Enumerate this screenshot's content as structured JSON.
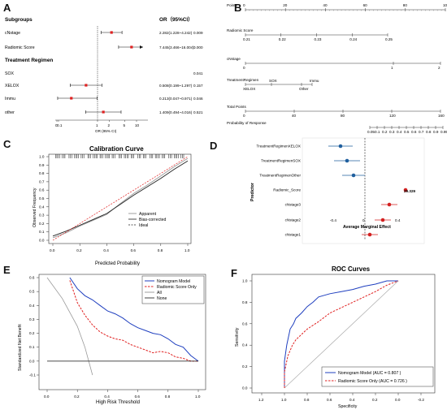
{
  "panels": {
    "A": {
      "label": "A",
      "header_subgroups": "Subgroups",
      "header_or": "OR（95%CI）",
      "rows": [
        {
          "label": "cNstage",
          "or": 2.282,
          "lo": 1.228,
          "hi": 4.242,
          "or_text": "2.282(1.228~4.242)",
          "p": "0.009",
          "heading": false
        },
        {
          "label": "Radiomic Score",
          "or": 7.445,
          "lo": 3.466,
          "hi": 16.004,
          "or_text": "7.445(3.466~16.004)",
          "p": "0.000",
          "heading": false,
          "arrow": true
        },
        {
          "label": "Treatment Regimen",
          "heading": true
        },
        {
          "label": "SOX",
          "or_text": "",
          "p": "0.041",
          "heading": false
        },
        {
          "label": "XELOX",
          "or": 0.508,
          "lo": 0.199,
          "hi": 1.297,
          "or_text": "0.508(0.199~1.297)",
          "p": "0.157",
          "heading": false
        },
        {
          "label": "Immu",
          "or": 0.213,
          "lo": 0.047,
          "hi": 0.971,
          "or_text": "0.213(0.047~0.971)",
          "p": "0.046",
          "heading": false
        },
        {
          "label": "other",
          "or": 1.409,
          "lo": 0.494,
          "hi": 4.016,
          "or_text": "1.409(0.494~4.016)",
          "p": "0.521",
          "heading": false
        }
      ],
      "ticks": [
        "0",
        "0.1",
        "1",
        "2",
        "5",
        "10"
      ],
      "xlabel": "OR (95% CI)"
    },
    "B": {
      "label": "B",
      "rows": [
        {
          "name": "Points",
          "ticks": [
            "0",
            "20",
            "40",
            "60",
            "80",
            "100"
          ]
        },
        {
          "name": "Radiomic Score",
          "ticks": [
            "0.21",
            "0.22",
            "0.23",
            "0.24",
            "0.25"
          ]
        },
        {
          "name": "cNstage",
          "ticks": [
            "0",
            "1",
            "2"
          ]
        },
        {
          "name": "TreatmentRegimen",
          "ticks": [
            "SOX",
            "Immu",
            "XELOX",
            "Other"
          ]
        },
        {
          "name": "Total Points",
          "ticks": [
            "0",
            "40",
            "80",
            "120",
            "160"
          ]
        },
        {
          "name": "Probability of Response",
          "ticks": [
            "0.05",
            "0.1",
            "0.2",
            "0.3",
            "0.4",
            "0.5",
            "0.6",
            "0.7",
            "0.8",
            "0.9",
            "0.95"
          ]
        }
      ]
    },
    "C": {
      "label": "C",
      "title": "Calibration Curve",
      "xlabel": "Predicted Probability",
      "ylabel": "Observed Frequency",
      "xticks": [
        "0.0",
        "0.2",
        "0.4",
        "0.6",
        "0.8",
        "1.0"
      ],
      "yticks": [
        "0.0",
        "0.1",
        "0.2",
        "0.3",
        "0.4",
        "0.5",
        "0.6",
        "0.7",
        "0.8",
        "0.9",
        "1.0"
      ],
      "legend": [
        "Apparent",
        "Bias-corrected",
        "Ideal"
      ]
    },
    "D": {
      "label": "D",
      "xlabel": "Average Marginal Effect",
      "ylabel": "Predictor",
      "xticks": [
        "-0.4",
        "0",
        "0.4"
      ],
      "annotation": "29.329",
      "colors": {
        "negative": "#1f5f9e",
        "positive": "#d32020"
      }
    },
    "E": {
      "label": "E",
      "xlabel": "High Risk Threshold",
      "ylabel": "Standardized Net Benefit",
      "xticks": [
        "0.0",
        "0.2",
        "0.4",
        "0.6",
        "0.8",
        "1.0"
      ],
      "yticks": [
        "-0.1",
        "0.0",
        "0.1",
        "0.2",
        "0.3",
        "0.4",
        "0.5",
        "0.6"
      ],
      "legend": [
        "Nomogram Model",
        "Radiomic Score Only",
        "All",
        "None"
      ]
    },
    "F": {
      "label": "F",
      "title": "ROC Curves",
      "xlabel": "Specificity",
      "ylabel": "Sensitivity",
      "xticks": [
        "1.2",
        "1.0",
        "0.8",
        "0.6",
        "0.4",
        "0.2",
        "0.0",
        "-0.2"
      ],
      "yticks": [
        "0.0",
        "0.2",
        "0.4",
        "0.6",
        "0.8",
        "1.0"
      ],
      "legend": [
        "Nomogram Model (AUC = 0.807 )",
        "Radiomic Score Only (AUC = 0.726 )"
      ],
      "colors": {
        "nomogram": "#1f3fbf",
        "radiomic": "#e02020"
      }
    }
  },
  "chart_data": [
    {
      "type": "scatter",
      "panel": "D",
      "categories": [
        "TreatmentRegimenXELOX",
        "TreatmentRegimenSOX",
        "TreatmentRegimenOther",
        "Radiomic_Score",
        "cNstage3",
        "cNstage2",
        "cNstage1"
      ],
      "values": [
        -0.3,
        -0.22,
        -0.14,
        0.5,
        0.3,
        0.22,
        0.06
      ],
      "lower": [
        -0.45,
        -0.38,
        -0.28,
        0.5,
        0.2,
        0.12,
        -0.04
      ],
      "upper": [
        -0.15,
        -0.06,
        0.0,
        0.5,
        0.4,
        0.32,
        0.16
      ],
      "xlabel": "Average Marginal Effect",
      "ylabel": "Predictor"
    },
    {
      "type": "line",
      "panel": "C",
      "title": "Calibration Curve",
      "series": [
        {
          "name": "Apparent",
          "x": [
            0.0,
            0.1,
            0.2,
            0.3,
            0.4,
            0.5,
            0.6,
            0.7,
            0.8,
            0.9,
            1.0
          ],
          "y": [
            0.03,
            0.09,
            0.17,
            0.24,
            0.31,
            0.44,
            0.56,
            0.66,
            0.77,
            0.88,
            0.98
          ]
        },
        {
          "name": "Bias-corrected",
          "x": [
            0.0,
            0.1,
            0.2,
            0.3,
            0.4,
            0.5,
            0.6,
            0.7,
            0.8,
            0.9,
            1.0
          ],
          "y": [
            0.05,
            0.11,
            0.18,
            0.25,
            0.32,
            0.43,
            0.54,
            0.64,
            0.74,
            0.85,
            0.95
          ]
        },
        {
          "name": "Ideal",
          "x": [
            0.0,
            1.0
          ],
          "y": [
            0.0,
            1.0
          ]
        }
      ],
      "xlim": [
        0,
        1
      ],
      "ylim": [
        0,
        1
      ]
    },
    {
      "type": "line",
      "panel": "E",
      "series": [
        {
          "name": "Nomogram Model",
          "x": [
            0.15,
            0.2,
            0.25,
            0.3,
            0.35,
            0.4,
            0.45,
            0.5,
            0.55,
            0.6,
            0.65,
            0.7,
            0.75,
            0.8,
            0.85,
            0.9,
            0.95,
            1.0
          ],
          "y": [
            0.6,
            0.52,
            0.47,
            0.44,
            0.4,
            0.36,
            0.34,
            0.31,
            0.27,
            0.24,
            0.22,
            0.2,
            0.19,
            0.16,
            0.12,
            0.1,
            0.04,
            0.0
          ]
        },
        {
          "name": "Radiomic Score Only",
          "x": [
            0.15,
            0.2,
            0.25,
            0.3,
            0.35,
            0.4,
            0.45,
            0.5,
            0.55,
            0.6,
            0.65,
            0.7,
            0.75,
            0.8,
            0.85,
            0.9,
            0.95,
            1.0
          ],
          "y": [
            0.58,
            0.42,
            0.33,
            0.26,
            0.21,
            0.18,
            0.16,
            0.15,
            0.12,
            0.1,
            0.08,
            0.06,
            0.07,
            0.06,
            0.03,
            0.02,
            0.0,
            0.0
          ]
        },
        {
          "name": "All",
          "x": [
            0.0,
            0.1,
            0.2,
            0.25,
            0.3
          ],
          "y": [
            0.6,
            0.45,
            0.25,
            0.1,
            -0.1
          ]
        },
        {
          "name": "None",
          "x": [
            0.0,
            1.0
          ],
          "y": [
            0.0,
            0.0
          ]
        }
      ],
      "xlim": [
        0,
        1
      ],
      "ylim": [
        -0.1,
        0.6
      ]
    },
    {
      "type": "line",
      "panel": "F",
      "title": "ROC Curves",
      "series": [
        {
          "name": "Nomogram Model (AUC = 0.807 )",
          "x": [
            1.0,
            1.0,
            0.98,
            0.95,
            0.92,
            0.9,
            0.85,
            0.8,
            0.75,
            0.7,
            0.6,
            0.5,
            0.4,
            0.3,
            0.2,
            0.1,
            0.0
          ],
          "y": [
            0.0,
            0.25,
            0.4,
            0.55,
            0.6,
            0.65,
            0.7,
            0.76,
            0.8,
            0.85,
            0.88,
            0.9,
            0.92,
            0.95,
            0.97,
            1.0,
            1.0
          ]
        },
        {
          "name": "Radiomic Score Only (AUC = 0.726 )",
          "x": [
            1.0,
            1.0,
            0.97,
            0.93,
            0.9,
            0.85,
            0.8,
            0.7,
            0.6,
            0.5,
            0.4,
            0.3,
            0.2,
            0.1,
            0.0
          ],
          "y": [
            0.0,
            0.15,
            0.3,
            0.4,
            0.45,
            0.5,
            0.55,
            0.62,
            0.7,
            0.75,
            0.8,
            0.85,
            0.9,
            0.96,
            1.0
          ]
        }
      ],
      "xlim": [
        1.2,
        -0.2
      ],
      "ylim": [
        0,
        1
      ]
    }
  ]
}
